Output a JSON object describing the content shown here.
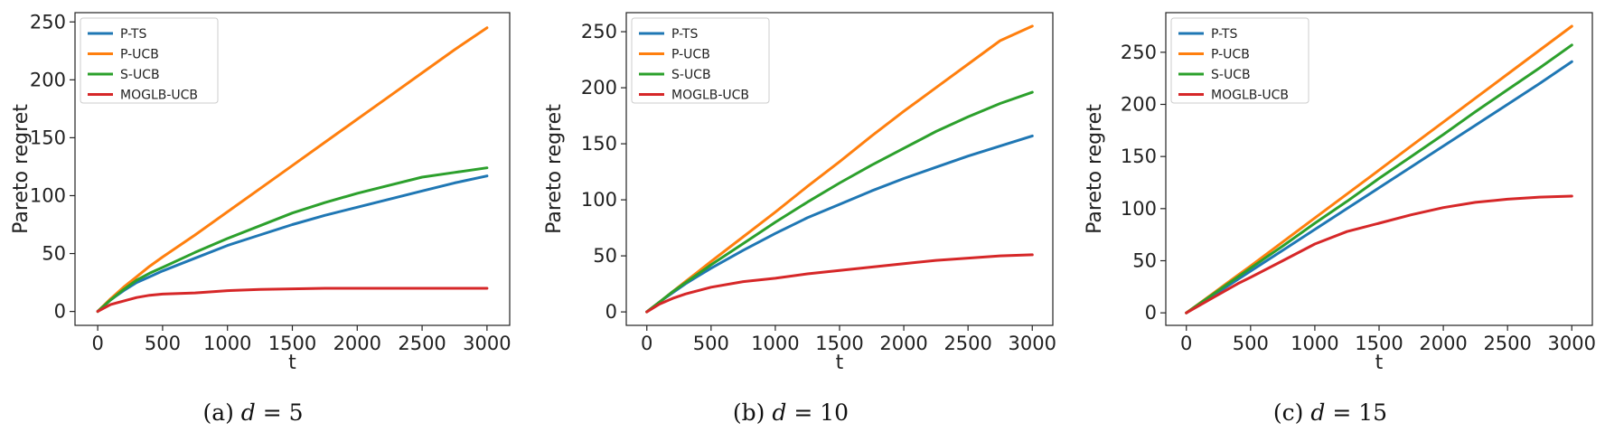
{
  "figure": {
    "captions": [
      {
        "prefix": "(a) ",
        "var": "d",
        "eq": " = ",
        "value": "5"
      },
      {
        "prefix": "(b) ",
        "var": "d",
        "eq": " = ",
        "value": "10"
      },
      {
        "prefix": "(c) ",
        "var": "d",
        "eq": " = ",
        "value": "15"
      }
    ]
  },
  "colors": {
    "P-TS": "#1f77b4",
    "P-UCB": "#ff7f0e",
    "S-UCB": "#2ca02c",
    "MOGLB-UCB": "#d62728"
  },
  "chart_data": [
    {
      "type": "line",
      "title": "",
      "caption": "(a) d = 5",
      "xlabel": "t",
      "ylabel": "Pareto regret",
      "xlim": [
        -175,
        3175
      ],
      "ylim": [
        -12,
        258
      ],
      "xticks": [
        0,
        500,
        1000,
        1500,
        2000,
        2500,
        3000
      ],
      "yticks": [
        0,
        50,
        100,
        150,
        200,
        250
      ],
      "legend": {
        "location": "upper-left"
      },
      "x": [
        0,
        100,
        200,
        300,
        400,
        500,
        750,
        1000,
        1250,
        1500,
        1750,
        2000,
        2250,
        2500,
        2750,
        3000
      ],
      "series": [
        {
          "name": "P-TS",
          "color": "#1f77b4",
          "values": [
            0,
            10,
            18,
            25,
            30,
            35,
            46,
            57,
            66,
            75,
            83,
            90,
            97,
            104,
            111,
            117
          ]
        },
        {
          "name": "P-UCB",
          "color": "#ff7f0e",
          "values": [
            0,
            11,
            21,
            30,
            39,
            47,
            66,
            86,
            106,
            126,
            146,
            166,
            186,
            206,
            226,
            245
          ]
        },
        {
          "name": "S-UCB",
          "color": "#2ca02c",
          "values": [
            0,
            10,
            19,
            27,
            33,
            38,
            51,
            63,
            74,
            85,
            94,
            102,
            109,
            116,
            120,
            124
          ]
        },
        {
          "name": "MOGLB-UCB",
          "color": "#d62728",
          "values": [
            0,
            6,
            9,
            12,
            14,
            15,
            16,
            18,
            19,
            19.5,
            20,
            20,
            20,
            20,
            20,
            20
          ]
        }
      ]
    },
    {
      "type": "line",
      "title": "",
      "caption": "(b) d = 10",
      "xlabel": "t",
      "ylabel": "Pareto regret",
      "xlim": [
        -160,
        3160
      ],
      "ylim": [
        -12,
        267
      ],
      "xticks": [
        0,
        500,
        1000,
        1500,
        2000,
        2500,
        3000
      ],
      "yticks": [
        0,
        50,
        100,
        150,
        200,
        250
      ],
      "legend": {
        "location": "upper-left"
      },
      "x": [
        0,
        100,
        200,
        300,
        400,
        500,
        750,
        1000,
        1250,
        1500,
        1750,
        2000,
        2250,
        2500,
        2750,
        3000
      ],
      "series": [
        {
          "name": "P-TS",
          "color": "#1f77b4",
          "values": [
            0,
            9,
            17,
            25,
            32,
            39,
            55,
            70,
            84,
            96,
            108,
            119,
            129,
            139,
            148,
            157
          ]
        },
        {
          "name": "P-UCB",
          "color": "#ff7f0e",
          "values": [
            0,
            9,
            18,
            27,
            36,
            45,
            67,
            89,
            112,
            134,
            157,
            179,
            200,
            221,
            242,
            255
          ]
        },
        {
          "name": "S-UCB",
          "color": "#2ca02c",
          "values": [
            0,
            9,
            18,
            26,
            34,
            42,
            61,
            80,
            98,
            115,
            131,
            146,
            161,
            174,
            186,
            196
          ]
        },
        {
          "name": "MOGLB-UCB",
          "color": "#d62728",
          "values": [
            0,
            7,
            12,
            16,
            19,
            22,
            27,
            30,
            34,
            37,
            40,
            43,
            46,
            48,
            50,
            51
          ]
        }
      ]
    },
    {
      "type": "line",
      "title": "",
      "caption": "(c) d = 15",
      "xlabel": "t",
      "ylabel": "Pareto regret",
      "xlim": [
        -160,
        3160
      ],
      "ylim": [
        -12,
        288
      ],
      "xticks": [
        0,
        500,
        1000,
        1500,
        2000,
        2500,
        3000
      ],
      "yticks": [
        0,
        50,
        100,
        150,
        200,
        250
      ],
      "legend": {
        "location": "upper-left"
      },
      "x": [
        0,
        100,
        200,
        300,
        400,
        500,
        750,
        1000,
        1250,
        1500,
        1750,
        2000,
        2250,
        2500,
        2750,
        3000
      ],
      "series": [
        {
          "name": "P-TS",
          "color": "#1f77b4",
          "values": [
            0,
            8,
            16,
            24,
            32,
            40,
            60,
            80,
            100,
            120,
            140,
            160,
            180,
            200,
            220,
            241
          ]
        },
        {
          "name": "P-UCB",
          "color": "#ff7f0e",
          "values": [
            0,
            9,
            18,
            27,
            36,
            45,
            68,
            91,
            114,
            137,
            160,
            183,
            206,
            229,
            252,
            275
          ]
        },
        {
          "name": "S-UCB",
          "color": "#2ca02c",
          "values": [
            0,
            8.6,
            17.2,
            25.8,
            34.4,
            43,
            64,
            86,
            107,
            129,
            150,
            171,
            193,
            214,
            235,
            257
          ]
        },
        {
          "name": "MOGLB-UCB",
          "color": "#d62728",
          "values": [
            0,
            7,
            14,
            21,
            28,
            34,
            50,
            66,
            78,
            86,
            94,
            101,
            106,
            109,
            111,
            112
          ]
        }
      ]
    }
  ]
}
